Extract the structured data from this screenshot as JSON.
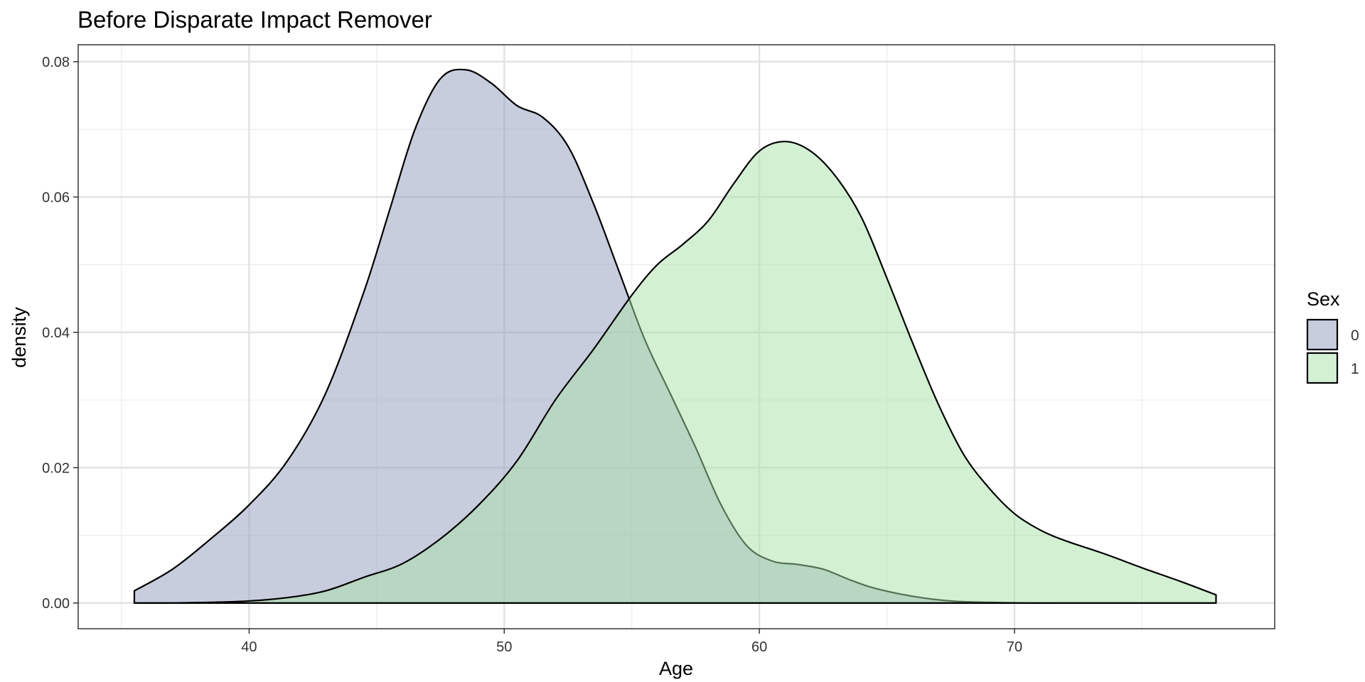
{
  "chart_data": {
    "type": "area",
    "title": "Before Disparate Impact Remover",
    "xlabel": "Age",
    "ylabel": "density",
    "xlim": [
      33.3,
      80.2
    ],
    "ylim": [
      -0.0038,
      0.0825
    ],
    "x_ticks": [
      40,
      50,
      60,
      70
    ],
    "x_tick_labels": [
      "40",
      "50",
      "60",
      "70"
    ],
    "x_minor_ticks": [
      35,
      45,
      55,
      65,
      75
    ],
    "y_ticks": [
      0,
      0.02,
      0.04,
      0.06,
      0.08
    ],
    "y_tick_labels": [
      "0.00",
      "0.02",
      "0.04",
      "0.06",
      "0.08"
    ],
    "y_minor_ticks": [
      0.01,
      0.03,
      0.05,
      0.07
    ],
    "grid": true,
    "legend": {
      "title": "Sex",
      "position": "right"
    },
    "series": [
      {
        "name": "0",
        "fill": "#929cbc",
        "opacity": 0.5,
        "x": [
          35.5,
          37,
          38.5,
          40,
          41.5,
          43,
          44.5,
          45.5,
          46.5,
          47.5,
          48.5,
          49.5,
          50.5,
          51.5,
          52.5,
          53.5,
          54.5,
          55.5,
          56.5,
          57.5,
          58.5,
          59.5,
          60.5,
          61.5,
          62.5,
          63.5,
          64.5,
          66,
          67.5,
          69,
          70.5,
          72,
          74,
          76,
          77.9
        ],
        "y": [
          0.0018,
          0.005,
          0.0095,
          0.0145,
          0.021,
          0.031,
          0.046,
          0.058,
          0.07,
          0.0775,
          0.0788,
          0.0768,
          0.0735,
          0.0718,
          0.0675,
          0.059,
          0.049,
          0.039,
          0.031,
          0.023,
          0.0145,
          0.0085,
          0.0062,
          0.0057,
          0.005,
          0.0035,
          0.0022,
          0.001,
          0.0003,
          0.0001,
          0.0,
          0.0,
          0.0,
          0.0,
          0.0
        ]
      },
      {
        "name": "1",
        "fill": "#a8e2a8",
        "opacity": 0.5,
        "x": [
          35.5,
          37,
          38.5,
          40,
          41.5,
          43,
          44.5,
          46,
          47.5,
          49,
          50.5,
          52,
          53.5,
          55,
          56,
          57,
          58,
          59,
          60,
          61,
          62,
          63,
          64,
          65,
          66,
          67,
          68,
          69,
          70,
          71,
          72,
          73.5,
          75,
          76.5,
          77.9
        ],
        "y": [
          0.0,
          0.0,
          0.0001,
          0.0003,
          0.0008,
          0.0018,
          0.0038,
          0.0058,
          0.0095,
          0.0145,
          0.021,
          0.03,
          0.0375,
          0.0455,
          0.05,
          0.053,
          0.0565,
          0.062,
          0.0668,
          0.0682,
          0.0668,
          0.063,
          0.057,
          0.048,
          0.0385,
          0.0295,
          0.022,
          0.017,
          0.0132,
          0.0108,
          0.0092,
          0.0073,
          0.0052,
          0.0032,
          0.0012
        ]
      }
    ]
  }
}
